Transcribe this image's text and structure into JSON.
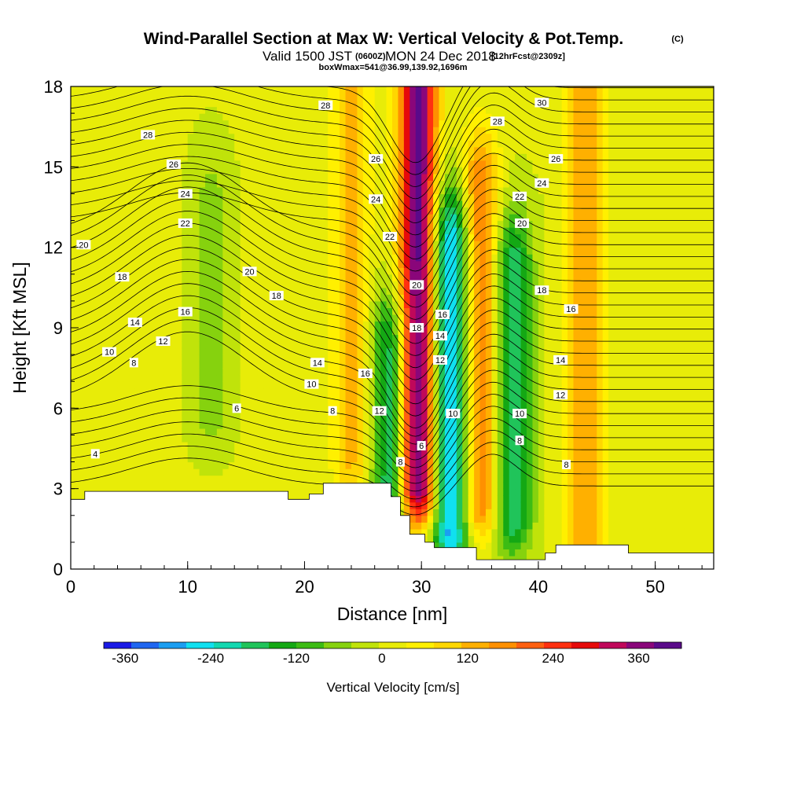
{
  "header": {
    "title": "Wind-Parallel Section at Max W: Vertical Velocity & Pot.Temp.",
    "title_suffix": "(C)",
    "subtitle": "Valid 1500 JST",
    "subtitle_utc": "(0600Z)",
    "subtitle_date": "MON 24 Dec 2018",
    "subtitle_fcst": "[12hrFcst@2309z]",
    "boxline": "boxWmax=541@36.99,139.92,1696m"
  },
  "chart_data": {
    "type": "heatmap",
    "title": "Wind-Parallel Section at Max W: Vertical Velocity & Pot.Temp.",
    "xlabel": "Distance [nm]",
    "ylabel": "Height [Kft MSL]",
    "xlim": [
      0,
      55
    ],
    "ylim": [
      0,
      18
    ],
    "x_ticks": [
      0,
      10,
      20,
      30,
      40,
      50
    ],
    "y_ticks": [
      0,
      3,
      6,
      9,
      12,
      15,
      18
    ],
    "colorbar": {
      "label": "Vertical Velocity [cm/s]",
      "min": -390,
      "max": 420,
      "tick_values": [
        -360,
        -240,
        -120,
        0,
        120,
        240,
        360
      ],
      "colors": [
        "#1a1ae6",
        "#1f66f0",
        "#1a9ef2",
        "#10e0f0",
        "#12d8b0",
        "#20c45a",
        "#14a814",
        "#3cbc14",
        "#86d20e",
        "#c0e30a",
        "#e8ec08",
        "#fff000",
        "#ffd700",
        "#ffb000",
        "#ff9000",
        "#ff6010",
        "#ff3010",
        "#e60a0a",
        "#c0085a",
        "#8a067a",
        "#5a0a8a"
      ]
    },
    "series": [
      {
        "name": "Vertical Velocity",
        "kind": "filled-contour",
        "features": [
          {
            "x": 29.7,
            "y_range": [
              3.0,
              18.0
            ],
            "value": 400
          },
          {
            "x": 32.5,
            "y_range": [
              1.5,
              12.0
            ],
            "value": -300
          },
          {
            "x": 37.8,
            "y_range": [
              2.0,
              11.0
            ],
            "value": -200
          },
          {
            "x": 35.0,
            "y_range": [
              2.5,
              14.0
            ],
            "value": 200
          },
          {
            "x": 44.0,
            "y_range": [
              1.0,
              18.0
            ],
            "value": 150
          },
          {
            "x": 27.3,
            "y_range": [
              2.5,
              8.0
            ],
            "value": -200
          },
          {
            "x": 24.0,
            "y_range": [
              4.0,
              18.0
            ],
            "value": 120
          },
          {
            "x": 12.0,
            "y_range": [
              6.0,
              13.0
            ],
            "value": -70
          }
        ]
      },
      {
        "name": "Pot.Temp.",
        "kind": "contour-lines",
        "levels_labeled": [
          4,
          6,
          8,
          10,
          12,
          14,
          16,
          18,
          20,
          22,
          24,
          26,
          28,
          30
        ]
      }
    ],
    "contour_labels": [
      {
        "text": "4",
        "x": 2.1,
        "y": 4.3
      },
      {
        "text": "6",
        "x": 14.2,
        "y": 6.0
      },
      {
        "text": "8",
        "x": 5.4,
        "y": 7.7
      },
      {
        "text": "10",
        "x": 3.3,
        "y": 8.1
      },
      {
        "text": "12",
        "x": 7.9,
        "y": 8.5
      },
      {
        "text": "14",
        "x": 5.5,
        "y": 9.2
      },
      {
        "text": "16",
        "x": 9.8,
        "y": 9.6
      },
      {
        "text": "18",
        "x": 4.4,
        "y": 10.9
      },
      {
        "text": "20",
        "x": 1.1,
        "y": 12.1
      },
      {
        "text": "22",
        "x": 9.8,
        "y": 12.9
      },
      {
        "text": "24",
        "x": 9.8,
        "y": 14.0
      },
      {
        "text": "26",
        "x": 8.8,
        "y": 15.1
      },
      {
        "text": "28",
        "x": 6.6,
        "y": 16.2
      },
      {
        "text": "20",
        "x": 15.3,
        "y": 11.1
      },
      {
        "text": "18",
        "x": 17.6,
        "y": 10.2
      },
      {
        "text": "14",
        "x": 21.1,
        "y": 7.7
      },
      {
        "text": "10",
        "x": 20.6,
        "y": 6.9
      },
      {
        "text": "8",
        "x": 22.4,
        "y": 5.9
      },
      {
        "text": "16",
        "x": 25.2,
        "y": 7.3
      },
      {
        "text": "12",
        "x": 26.4,
        "y": 5.9
      },
      {
        "text": "8",
        "x": 28.2,
        "y": 4.0
      },
      {
        "text": "6",
        "x": 30.0,
        "y": 4.6
      },
      {
        "text": "22",
        "x": 27.3,
        "y": 12.4
      },
      {
        "text": "24",
        "x": 26.1,
        "y": 13.8
      },
      {
        "text": "26",
        "x": 26.1,
        "y": 15.3
      },
      {
        "text": "28",
        "x": 21.8,
        "y": 17.3
      },
      {
        "text": "20",
        "x": 29.6,
        "y": 10.6
      },
      {
        "text": "18",
        "x": 29.6,
        "y": 9.0
      },
      {
        "text": "16",
        "x": 31.8,
        "y": 9.5
      },
      {
        "text": "14",
        "x": 31.6,
        "y": 8.7
      },
      {
        "text": "12",
        "x": 31.6,
        "y": 7.8
      },
      {
        "text": "10",
        "x": 32.7,
        "y": 5.8
      },
      {
        "text": "10",
        "x": 38.4,
        "y": 5.8
      },
      {
        "text": "8",
        "x": 38.4,
        "y": 4.8
      },
      {
        "text": "8",
        "x": 42.4,
        "y": 3.9
      },
      {
        "text": "12",
        "x": 41.9,
        "y": 6.5
      },
      {
        "text": "14",
        "x": 41.9,
        "y": 7.8
      },
      {
        "text": "16",
        "x": 42.8,
        "y": 9.7
      },
      {
        "text": "18",
        "x": 40.3,
        "y": 10.4
      },
      {
        "text": "20",
        "x": 38.6,
        "y": 12.9
      },
      {
        "text": "22",
        "x": 38.4,
        "y": 13.9
      },
      {
        "text": "24",
        "x": 40.3,
        "y": 14.4
      },
      {
        "text": "26",
        "x": 41.5,
        "y": 15.3
      },
      {
        "text": "28",
        "x": 36.5,
        "y": 16.7
      },
      {
        "text": "30",
        "x": 40.3,
        "y": 17.4
      }
    ],
    "terrain": [
      [
        0,
        2.6
      ],
      [
        1.2,
        2.6
      ],
      [
        1.2,
        2.9
      ],
      [
        18.6,
        2.9
      ],
      [
        18.6,
        2.6
      ],
      [
        20.4,
        2.6
      ],
      [
        20.4,
        2.8
      ],
      [
        21.6,
        2.8
      ],
      [
        21.6,
        3.2
      ],
      [
        27.4,
        3.2
      ],
      [
        27.4,
        2.7
      ],
      [
        28.2,
        2.7
      ],
      [
        28.2,
        2.0
      ],
      [
        29.0,
        2.0
      ],
      [
        29.0,
        1.3
      ],
      [
        30.3,
        1.3
      ],
      [
        30.3,
        1.0
      ],
      [
        31.1,
        1.0
      ],
      [
        31.1,
        0.8
      ],
      [
        34.7,
        0.8
      ],
      [
        34.7,
        0.35
      ],
      [
        40.6,
        0.35
      ],
      [
        40.6,
        0.6
      ],
      [
        41.5,
        0.6
      ],
      [
        41.5,
        0.9
      ],
      [
        47.7,
        0.9
      ],
      [
        47.7,
        0.6
      ],
      [
        55,
        0.6
      ]
    ]
  }
}
